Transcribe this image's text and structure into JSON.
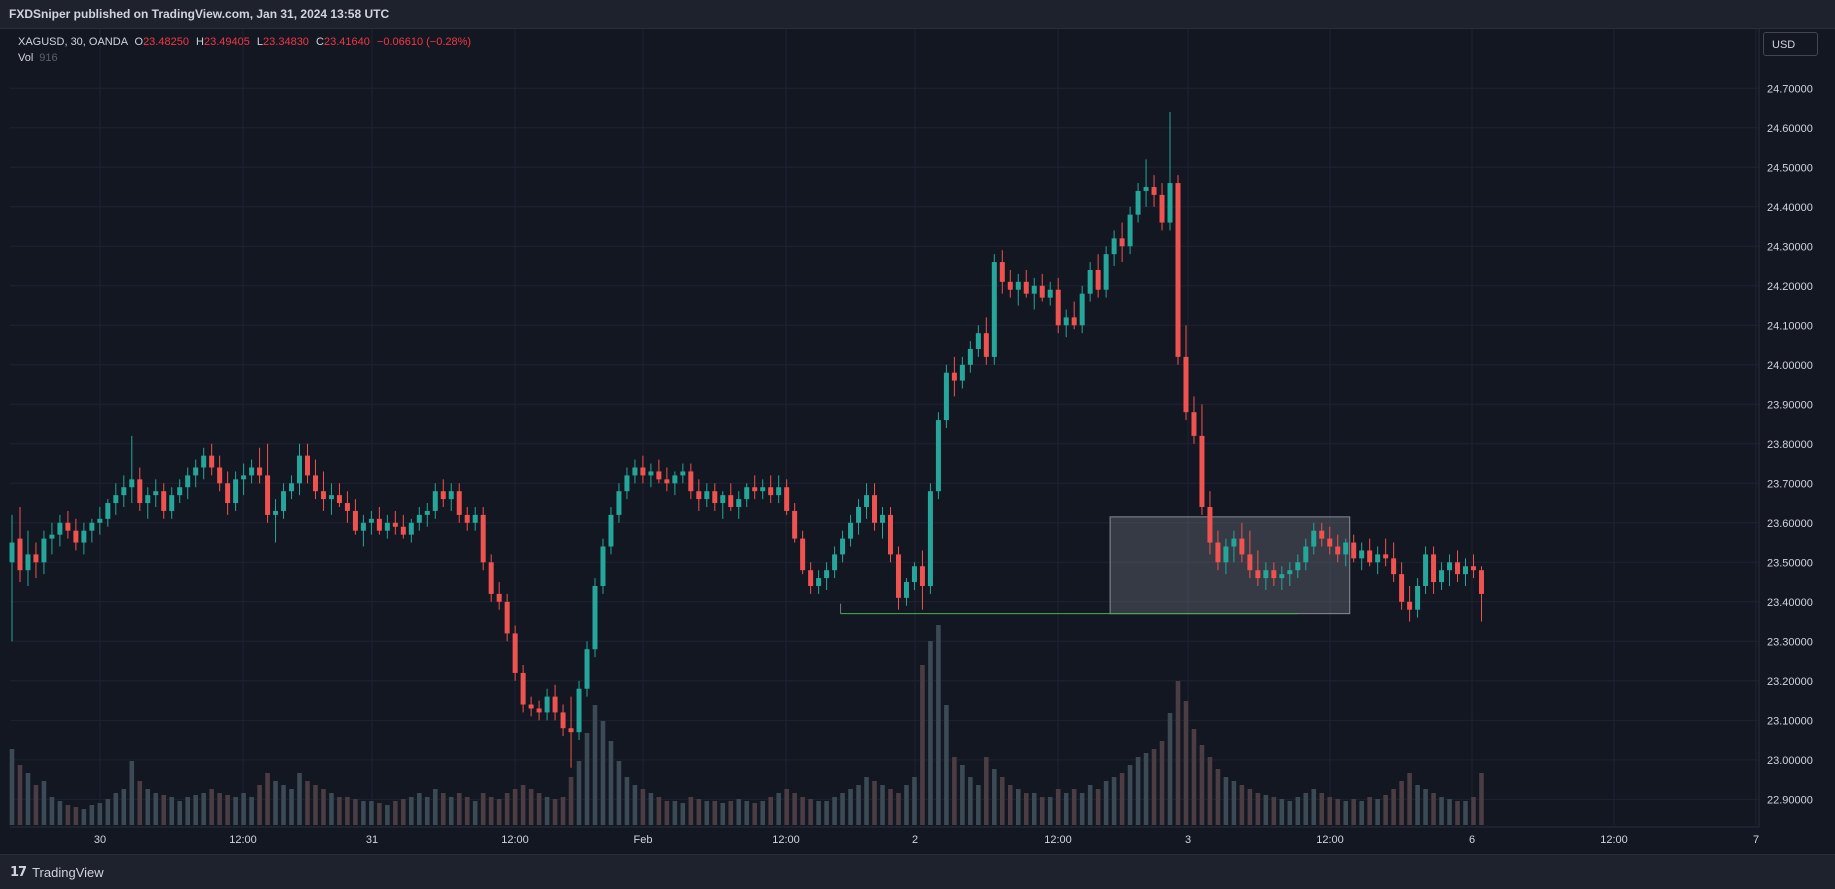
{
  "header": {
    "publisher_line": "FXDSniper published on TradingView.com, Jan 31, 2024 13:58 UTC"
  },
  "legend": {
    "symbol": "XAGUSD, 30, OANDA",
    "o_label": "O",
    "o": "23.48250",
    "h_label": "H",
    "h": "23.49405",
    "l_label": "L",
    "l": "23.34830",
    "c_label": "C",
    "c": "23.41640",
    "change": "−0.06610 (−0.28%)",
    "vol_label": "Vol",
    "vol_value": "916"
  },
  "currency_button": "USD",
  "footer": {
    "brand": "TradingView"
  },
  "colors": {
    "up": "#26a69a",
    "down": "#ef5350",
    "volume": "#5d606b",
    "zone_line": "#4caf50"
  },
  "chart_data": {
    "type": "candlestick",
    "symbol": "XAGUSD",
    "timeframe": "30",
    "y_ticks": [
      "24.70000",
      "24.60000",
      "24.50000",
      "24.40000",
      "24.30000",
      "24.20000",
      "24.10000",
      "24.00000",
      "23.90000",
      "23.80000",
      "23.70000",
      "23.60000",
      "23.50000",
      "23.40000",
      "23.30000",
      "23.20000",
      "23.10000",
      "23.00000",
      "22.90000"
    ],
    "x_ticks": [
      "30",
      "12:00",
      "31",
      "12:00",
      "Feb",
      "12:00",
      "2",
      "12:00",
      "3",
      "12:00",
      "6",
      "12:00",
      "7"
    ],
    "ylim": [
      22.835,
      24.85
    ],
    "xlim": [
      0,
      219
    ],
    "grid": true,
    "candles": [
      [
        23.5,
        23.62,
        23.3,
        23.55,
        38
      ],
      [
        23.56,
        23.64,
        23.45,
        23.48,
        30
      ],
      [
        23.48,
        23.58,
        23.44,
        23.52,
        26
      ],
      [
        23.52,
        23.55,
        23.46,
        23.5,
        20
      ],
      [
        23.5,
        23.58,
        23.47,
        23.56,
        22
      ],
      [
        23.56,
        23.6,
        23.52,
        23.57,
        14
      ],
      [
        23.57,
        23.62,
        23.54,
        23.6,
        12
      ],
      [
        23.6,
        23.63,
        23.56,
        23.58,
        10
      ],
      [
        23.58,
        23.61,
        23.53,
        23.55,
        9
      ],
      [
        23.55,
        23.6,
        23.52,
        23.58,
        8
      ],
      [
        23.58,
        23.61,
        23.55,
        23.6,
        10
      ],
      [
        23.6,
        23.64,
        23.57,
        23.61,
        11
      ],
      [
        23.61,
        23.66,
        23.59,
        23.65,
        13
      ],
      [
        23.65,
        23.7,
        23.62,
        23.67,
        16
      ],
      [
        23.67,
        23.72,
        23.64,
        23.69,
        18
      ],
      [
        23.69,
        23.82,
        23.65,
        23.71,
        32
      ],
      [
        23.71,
        23.74,
        23.63,
        23.65,
        22
      ],
      [
        23.65,
        23.69,
        23.61,
        23.67,
        18
      ],
      [
        23.67,
        23.71,
        23.64,
        23.68,
        16
      ],
      [
        23.68,
        23.7,
        23.61,
        23.63,
        15
      ],
      [
        23.63,
        23.69,
        23.61,
        23.67,
        14
      ],
      [
        23.67,
        23.71,
        23.65,
        23.69,
        12
      ],
      [
        23.69,
        23.74,
        23.66,
        23.72,
        14
      ],
      [
        23.72,
        23.76,
        23.69,
        23.74,
        15
      ],
      [
        23.74,
        23.79,
        23.71,
        23.77,
        16
      ],
      [
        23.77,
        23.8,
        23.72,
        23.74,
        18
      ],
      [
        23.74,
        23.77,
        23.68,
        23.7,
        16
      ],
      [
        23.7,
        23.73,
        23.62,
        23.65,
        15
      ],
      [
        23.65,
        23.73,
        23.63,
        23.71,
        14
      ],
      [
        23.71,
        23.75,
        23.67,
        23.72,
        16
      ],
      [
        23.72,
        23.76,
        23.7,
        23.74,
        14
      ],
      [
        23.74,
        23.79,
        23.7,
        23.72,
        20
      ],
      [
        23.72,
        23.8,
        23.6,
        23.62,
        26
      ],
      [
        23.62,
        23.66,
        23.55,
        23.63,
        22
      ],
      [
        23.63,
        23.7,
        23.61,
        23.68,
        20
      ],
      [
        23.68,
        23.72,
        23.66,
        23.7,
        18
      ],
      [
        23.7,
        23.8,
        23.67,
        23.77,
        26
      ],
      [
        23.77,
        23.8,
        23.7,
        23.72,
        22
      ],
      [
        23.72,
        23.76,
        23.66,
        23.68,
        20
      ],
      [
        23.68,
        23.73,
        23.63,
        23.66,
        18
      ],
      [
        23.66,
        23.7,
        23.62,
        23.67,
        16
      ],
      [
        23.67,
        23.7,
        23.64,
        23.65,
        14
      ],
      [
        23.65,
        23.68,
        23.6,
        23.63,
        14
      ],
      [
        23.63,
        23.66,
        23.57,
        23.58,
        13
      ],
      [
        23.58,
        23.62,
        23.54,
        23.6,
        12
      ],
      [
        23.6,
        23.63,
        23.57,
        23.61,
        12
      ],
      [
        23.61,
        23.64,
        23.57,
        23.58,
        11
      ],
      [
        23.58,
        23.62,
        23.56,
        23.6,
        10
      ],
      [
        23.6,
        23.63,
        23.57,
        23.59,
        12
      ],
      [
        23.59,
        23.62,
        23.56,
        23.57,
        13
      ],
      [
        23.57,
        23.61,
        23.55,
        23.6,
        14
      ],
      [
        23.6,
        23.64,
        23.58,
        23.62,
        16
      ],
      [
        23.62,
        23.65,
        23.59,
        23.63,
        14
      ],
      [
        23.63,
        23.7,
        23.61,
        23.68,
        18
      ],
      [
        23.68,
        23.71,
        23.64,
        23.66,
        16
      ],
      [
        23.66,
        23.7,
        23.63,
        23.68,
        14
      ],
      [
        23.68,
        23.7,
        23.6,
        23.62,
        16
      ],
      [
        23.62,
        23.64,
        23.58,
        23.6,
        14
      ],
      [
        23.6,
        23.64,
        23.58,
        23.62,
        12
      ],
      [
        23.62,
        23.64,
        23.48,
        23.5,
        16
      ],
      [
        23.5,
        23.52,
        23.4,
        23.42,
        14
      ],
      [
        23.42,
        23.45,
        23.38,
        23.4,
        13
      ],
      [
        23.4,
        23.42,
        23.3,
        23.32,
        16
      ],
      [
        23.32,
        23.34,
        23.2,
        23.22,
        18
      ],
      [
        23.22,
        23.24,
        23.12,
        23.14,
        20
      ],
      [
        23.14,
        23.16,
        23.11,
        23.13,
        18
      ],
      [
        23.13,
        23.15,
        23.1,
        23.12,
        16
      ],
      [
        23.12,
        23.18,
        23.1,
        23.16,
        14
      ],
      [
        23.16,
        23.19,
        23.1,
        23.12,
        13
      ],
      [
        23.12,
        23.14,
        23.06,
        23.08,
        14
      ],
      [
        23.08,
        23.16,
        22.98,
        23.07,
        24
      ],
      [
        23.07,
        23.2,
        23.05,
        23.18,
        32
      ],
      [
        23.18,
        23.3,
        23.16,
        23.28,
        46
      ],
      [
        23.28,
        23.46,
        23.26,
        23.44,
        60
      ],
      [
        23.44,
        23.56,
        23.42,
        23.54,
        52
      ],
      [
        23.54,
        23.64,
        23.52,
        23.62,
        42
      ],
      [
        23.62,
        23.7,
        23.6,
        23.68,
        32
      ],
      [
        23.68,
        23.74,
        23.66,
        23.72,
        24
      ],
      [
        23.72,
        23.76,
        23.7,
        23.74,
        20
      ],
      [
        23.74,
        23.77,
        23.7,
        23.72,
        18
      ],
      [
        23.72,
        23.75,
        23.69,
        23.73,
        16
      ],
      [
        23.73,
        23.76,
        23.7,
        23.71,
        14
      ],
      [
        23.71,
        23.74,
        23.68,
        23.7,
        12
      ],
      [
        23.7,
        23.73,
        23.67,
        23.72,
        12
      ],
      [
        23.72,
        23.75,
        23.7,
        23.73,
        11
      ],
      [
        23.73,
        23.75,
        23.66,
        23.68,
        14
      ],
      [
        23.68,
        23.71,
        23.63,
        23.66,
        13
      ],
      [
        23.66,
        23.7,
        23.64,
        23.68,
        12
      ],
      [
        23.68,
        23.7,
        23.63,
        23.65,
        12
      ],
      [
        23.65,
        23.68,
        23.61,
        23.67,
        11
      ],
      [
        23.67,
        23.7,
        23.63,
        23.64,
        12
      ],
      [
        23.64,
        23.68,
        23.61,
        23.66,
        13
      ],
      [
        23.66,
        23.7,
        23.64,
        23.69,
        12
      ],
      [
        23.69,
        23.72,
        23.66,
        23.68,
        11
      ],
      [
        23.68,
        23.71,
        23.66,
        23.69,
        12
      ],
      [
        23.69,
        23.72,
        23.65,
        23.67,
        14
      ],
      [
        23.67,
        23.72,
        23.65,
        23.69,
        16
      ],
      [
        23.69,
        23.71,
        23.62,
        23.63,
        18
      ],
      [
        23.63,
        23.65,
        23.55,
        23.56,
        16
      ],
      [
        23.56,
        23.58,
        23.47,
        23.48,
        14
      ],
      [
        23.48,
        23.5,
        23.42,
        23.44,
        13
      ],
      [
        23.44,
        23.48,
        23.42,
        23.46,
        12
      ],
      [
        23.46,
        23.5,
        23.43,
        23.48,
        12
      ],
      [
        23.48,
        23.54,
        23.46,
        23.52,
        14
      ],
      [
        23.52,
        23.58,
        23.5,
        23.56,
        16
      ],
      [
        23.56,
        23.62,
        23.54,
        23.6,
        18
      ],
      [
        23.6,
        23.66,
        23.57,
        23.64,
        20
      ],
      [
        23.64,
        23.7,
        23.61,
        23.67,
        24
      ],
      [
        23.67,
        23.7,
        23.58,
        23.6,
        22
      ],
      [
        23.6,
        23.64,
        23.56,
        23.62,
        20
      ],
      [
        23.62,
        23.64,
        23.5,
        23.52,
        18
      ],
      [
        23.52,
        23.54,
        23.38,
        23.41,
        16
      ],
      [
        23.41,
        23.46,
        23.39,
        23.45,
        20
      ],
      [
        23.45,
        23.5,
        23.43,
        23.49,
        24
      ],
      [
        23.49,
        23.53,
        23.38,
        23.44,
        80
      ],
      [
        23.44,
        23.7,
        23.42,
        23.68,
        92
      ],
      [
        23.68,
        23.88,
        23.66,
        23.86,
        100
      ],
      [
        23.86,
        24.0,
        23.84,
        23.98,
        60
      ],
      [
        23.98,
        24.02,
        23.92,
        23.96,
        34
      ],
      [
        23.96,
        24.02,
        23.94,
        24.0,
        30
      ],
      [
        24.0,
        24.06,
        23.98,
        24.04,
        24
      ],
      [
        24.04,
        24.1,
        24.02,
        24.08,
        20
      ],
      [
        24.08,
        24.12,
        24.0,
        24.02,
        34
      ],
      [
        24.02,
        24.28,
        24.0,
        24.26,
        28
      ],
      [
        24.26,
        24.29,
        24.18,
        24.21,
        24
      ],
      [
        24.21,
        24.24,
        24.17,
        24.19,
        20
      ],
      [
        24.19,
        24.23,
        24.15,
        24.21,
        18
      ],
      [
        24.21,
        24.24,
        24.17,
        24.18,
        16
      ],
      [
        24.18,
        24.22,
        24.14,
        24.2,
        16
      ],
      [
        24.2,
        24.23,
        24.16,
        24.17,
        14
      ],
      [
        24.17,
        24.21,
        24.15,
        24.19,
        14
      ],
      [
        24.19,
        24.22,
        24.08,
        24.1,
        18
      ],
      [
        24.1,
        24.14,
        24.07,
        24.12,
        16
      ],
      [
        24.12,
        24.16,
        24.09,
        24.1,
        18
      ],
      [
        24.1,
        24.2,
        24.08,
        24.18,
        16
      ],
      [
        24.18,
        24.26,
        24.16,
        24.24,
        20
      ],
      [
        24.24,
        24.28,
        24.17,
        24.19,
        18
      ],
      [
        24.19,
        24.3,
        24.17,
        24.28,
        22
      ],
      [
        24.28,
        24.34,
        24.25,
        24.32,
        24
      ],
      [
        24.32,
        24.36,
        24.26,
        24.3,
        26
      ],
      [
        24.3,
        24.4,
        24.28,
        24.38,
        30
      ],
      [
        24.38,
        24.46,
        24.36,
        24.44,
        34
      ],
      [
        24.44,
        24.52,
        24.4,
        24.45,
        36
      ],
      [
        24.45,
        24.48,
        24.4,
        24.43,
        38
      ],
      [
        24.43,
        24.46,
        24.34,
        24.36,
        42
      ],
      [
        24.36,
        24.64,
        24.34,
        24.46,
        56
      ],
      [
        24.46,
        24.48,
        24.0,
        24.02,
        72
      ],
      [
        24.02,
        24.1,
        23.86,
        23.88,
        62
      ],
      [
        23.88,
        23.92,
        23.8,
        23.82,
        48
      ],
      [
        23.82,
        23.9,
        23.62,
        23.64,
        40
      ],
      [
        23.64,
        23.68,
        23.52,
        23.55,
        34
      ],
      [
        23.55,
        23.58,
        23.48,
        23.5,
        28
      ],
      [
        23.5,
        23.56,
        23.47,
        23.54,
        24
      ],
      [
        23.54,
        23.58,
        23.5,
        23.56,
        22
      ],
      [
        23.56,
        23.6,
        23.5,
        23.52,
        20
      ],
      [
        23.52,
        23.58,
        23.46,
        23.48,
        18
      ],
      [
        23.48,
        23.53,
        23.44,
        23.46,
        16
      ],
      [
        23.46,
        23.5,
        23.43,
        23.48,
        15
      ],
      [
        23.48,
        23.5,
        23.44,
        23.46,
        14
      ],
      [
        23.46,
        23.49,
        23.43,
        23.47,
        13
      ],
      [
        23.47,
        23.5,
        23.44,
        23.48,
        12
      ],
      [
        23.48,
        23.52,
        23.46,
        23.5,
        14
      ],
      [
        23.5,
        23.56,
        23.48,
        23.54,
        16
      ],
      [
        23.54,
        23.6,
        23.52,
        23.58,
        18
      ],
      [
        23.58,
        23.6,
        23.54,
        23.56,
        16
      ],
      [
        23.56,
        23.59,
        23.52,
        23.54,
        14
      ],
      [
        23.54,
        23.57,
        23.5,
        23.52,
        13
      ],
      [
        23.52,
        23.56,
        23.49,
        23.55,
        12
      ],
      [
        23.55,
        23.57,
        23.5,
        23.51,
        13
      ],
      [
        23.51,
        23.55,
        23.48,
        23.53,
        12
      ],
      [
        23.53,
        23.56,
        23.49,
        23.5,
        14
      ],
      [
        23.5,
        23.54,
        23.47,
        23.52,
        13
      ],
      [
        23.52,
        23.56,
        23.49,
        23.51,
        15
      ],
      [
        23.51,
        23.55,
        23.45,
        23.47,
        18
      ],
      [
        23.47,
        23.5,
        23.38,
        23.4,
        22
      ],
      [
        23.4,
        23.44,
        23.35,
        23.38,
        26
      ],
      [
        23.38,
        23.46,
        23.36,
        23.44,
        20
      ],
      [
        23.44,
        23.54,
        23.42,
        23.52,
        18
      ],
      [
        23.52,
        23.54,
        23.42,
        23.45,
        16
      ],
      [
        23.45,
        23.5,
        23.43,
        23.48,
        14
      ],
      [
        23.48,
        23.52,
        23.44,
        23.5,
        13
      ],
      [
        23.5,
        23.53,
        23.45,
        23.47,
        12
      ],
      [
        23.47,
        23.51,
        23.44,
        23.49,
        12
      ],
      [
        23.49,
        23.52,
        23.46,
        23.48,
        14
      ],
      [
        23.48,
        23.49,
        23.35,
        23.42,
        26
      ]
    ],
    "annotations": {
      "support_level": 23.37,
      "support_start_index": 104,
      "range_box": {
        "start_index": 138,
        "end_index": 167,
        "top": 23.615,
        "bottom": 23.37
      }
    }
  }
}
